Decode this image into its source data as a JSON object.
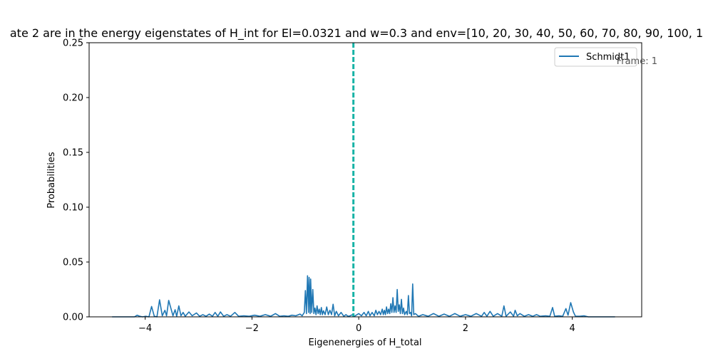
{
  "chart_data": {
    "type": "line",
    "title": "ate 2  are in the energy eigenstates of H_int for El=0.0321 and w=0.3 and env=[10, 20, 30, 40, 50, 60, 70, 80, 90, 100, 1",
    "xlabel": "Eigenenergies of H_total",
    "ylabel": "Probabilities",
    "xlim": [
      -5.05,
      5.3
    ],
    "ylim": [
      0,
      0.25
    ],
    "xticks": [
      {
        "value": -4,
        "label": "−4"
      },
      {
        "value": -2,
        "label": "−2"
      },
      {
        "value": 0,
        "label": "0"
      },
      {
        "value": 2,
        "label": "2"
      },
      {
        "value": 4,
        "label": "4"
      }
    ],
    "yticks": [
      {
        "value": 0.0,
        "label": "0.00"
      },
      {
        "value": 0.05,
        "label": "0.05"
      },
      {
        "value": 0.1,
        "label": "0.10"
      },
      {
        "value": 0.15,
        "label": "0.15"
      },
      {
        "value": 0.2,
        "label": "0.20"
      },
      {
        "value": 0.25,
        "label": "0.25"
      }
    ],
    "grid": false,
    "legend_position": "top-right",
    "annotation": "Frame: 1",
    "colors": {
      "series": "#1f77b4",
      "vline": "#17b3a6",
      "axes": "#000000",
      "annotation": "#555555"
    },
    "vline": {
      "x": -0.1,
      "style": "dashed"
    },
    "series": [
      {
        "name": "Schmidt1",
        "points": [
          [
            -4.62,
            0.0
          ],
          [
            -4.2,
            0.0
          ],
          [
            -4.15,
            0.0015
          ],
          [
            -4.1,
            0.0005
          ],
          [
            -4.05,
            0.0
          ],
          [
            -3.99,
            0.0005
          ],
          [
            -3.93,
            0.0
          ],
          [
            -3.88,
            0.0095
          ],
          [
            -3.83,
            0.0005
          ],
          [
            -3.78,
            0.0
          ],
          [
            -3.73,
            0.0155
          ],
          [
            -3.68,
            0.001
          ],
          [
            -3.63,
            0.006
          ],
          [
            -3.6,
            0.001
          ],
          [
            -3.56,
            0.015
          ],
          [
            -3.52,
            0.008
          ],
          [
            -3.48,
            0.001
          ],
          [
            -3.44,
            0.0065
          ],
          [
            -3.41,
            0.0005
          ],
          [
            -3.37,
            0.01
          ],
          [
            -3.33,
            0.001
          ],
          [
            -3.29,
            0.004
          ],
          [
            -3.25,
            0.0005
          ],
          [
            -3.18,
            0.0045
          ],
          [
            -3.12,
            0.001
          ],
          [
            -3.04,
            0.0035
          ],
          [
            -2.98,
            0.0005
          ],
          [
            -2.92,
            0.002
          ],
          [
            -2.86,
            0.0005
          ],
          [
            -2.8,
            0.0025
          ],
          [
            -2.74,
            0.0005
          ],
          [
            -2.69,
            0.004
          ],
          [
            -2.64,
            0.0005
          ],
          [
            -2.59,
            0.0045
          ],
          [
            -2.53,
            0.0005
          ],
          [
            -2.47,
            0.002
          ],
          [
            -2.4,
            0.0005
          ],
          [
            -2.32,
            0.004
          ],
          [
            -2.25,
            0.0005
          ],
          [
            -2.15,
            0.001
          ],
          [
            -2.05,
            0.0005
          ],
          [
            -1.95,
            0.0015
          ],
          [
            -1.85,
            0.0005
          ],
          [
            -1.75,
            0.002
          ],
          [
            -1.65,
            0.0005
          ],
          [
            -1.56,
            0.003
          ],
          [
            -1.48,
            0.0005
          ],
          [
            -1.4,
            0.001
          ],
          [
            -1.32,
            0.0005
          ],
          [
            -1.25,
            0.0015
          ],
          [
            -1.18,
            0.001
          ],
          [
            -1.1,
            0.0025
          ],
          [
            -1.06,
            0.001
          ],
          [
            -1.02,
            0.004
          ],
          [
            -1.0,
            0.024
          ],
          [
            -0.98,
            0.003
          ],
          [
            -0.96,
            0.0375
          ],
          [
            -0.94,
            0.004
          ],
          [
            -0.93,
            0.036
          ],
          [
            -0.91,
            0.003
          ],
          [
            -0.9,
            0.0345
          ],
          [
            -0.88,
            0.004
          ],
          [
            -0.86,
            0.025
          ],
          [
            -0.84,
            0.003
          ],
          [
            -0.82,
            0.008
          ],
          [
            -0.8,
            0.002
          ],
          [
            -0.78,
            0.01
          ],
          [
            -0.76,
            0.003
          ],
          [
            -0.74,
            0.007
          ],
          [
            -0.72,
            0.002
          ],
          [
            -0.7,
            0.0085
          ],
          [
            -0.68,
            0.002
          ],
          [
            -0.66,
            0.0055
          ],
          [
            -0.63,
            0.002
          ],
          [
            -0.6,
            0.009
          ],
          [
            -0.57,
            0.002
          ],
          [
            -0.54,
            0.006
          ],
          [
            -0.51,
            0.002
          ],
          [
            -0.48,
            0.0115
          ],
          [
            -0.45,
            0.001
          ],
          [
            -0.42,
            0.005
          ],
          [
            -0.38,
            0.001
          ],
          [
            -0.33,
            0.004
          ],
          [
            -0.28,
            0.0005
          ],
          [
            -0.24,
            0.002
          ],
          [
            -0.2,
            0.0005
          ],
          [
            -0.16,
            0.001
          ],
          [
            -0.12,
            0.002
          ],
          [
            -0.08,
            0.0005
          ],
          [
            0.0,
            0.003
          ],
          [
            0.05,
            0.001
          ],
          [
            0.1,
            0.004
          ],
          [
            0.14,
            0.001
          ],
          [
            0.18,
            0.005
          ],
          [
            0.21,
            0.001
          ],
          [
            0.25,
            0.004
          ],
          [
            0.29,
            0.001
          ],
          [
            0.32,
            0.006
          ],
          [
            0.35,
            0.002
          ],
          [
            0.38,
            0.005
          ],
          [
            0.41,
            0.002
          ],
          [
            0.44,
            0.007
          ],
          [
            0.46,
            0.002
          ],
          [
            0.48,
            0.006
          ],
          [
            0.5,
            0.002
          ],
          [
            0.52,
            0.009
          ],
          [
            0.54,
            0.003
          ],
          [
            0.56,
            0.007
          ],
          [
            0.58,
            0.003
          ],
          [
            0.6,
            0.012
          ],
          [
            0.62,
            0.004
          ],
          [
            0.64,
            0.0175
          ],
          [
            0.66,
            0.004
          ],
          [
            0.68,
            0.01
          ],
          [
            0.7,
            0.004
          ],
          [
            0.72,
            0.025
          ],
          [
            0.74,
            0.005
          ],
          [
            0.76,
            0.011
          ],
          [
            0.78,
            0.003
          ],
          [
            0.8,
            0.016
          ],
          [
            0.82,
            0.003
          ],
          [
            0.84,
            0.008
          ],
          [
            0.86,
            0.002
          ],
          [
            0.89,
            0.005
          ],
          [
            0.91,
            0.002
          ],
          [
            0.93,
            0.0195
          ],
          [
            0.95,
            0.003
          ],
          [
            0.97,
            0.004
          ],
          [
            0.99,
            0.001
          ],
          [
            1.01,
            0.03
          ],
          [
            1.03,
            0.002
          ],
          [
            1.06,
            0.003
          ],
          [
            1.12,
            0.0005
          ],
          [
            1.2,
            0.002
          ],
          [
            1.3,
            0.0005
          ],
          [
            1.4,
            0.003
          ],
          [
            1.5,
            0.0005
          ],
          [
            1.6,
            0.0025
          ],
          [
            1.7,
            0.0005
          ],
          [
            1.8,
            0.003
          ],
          [
            1.9,
            0.0005
          ],
          [
            2.0,
            0.002
          ],
          [
            2.1,
            0.0005
          ],
          [
            2.2,
            0.003
          ],
          [
            2.3,
            0.0005
          ],
          [
            2.35,
            0.004
          ],
          [
            2.4,
            0.0005
          ],
          [
            2.46,
            0.005
          ],
          [
            2.52,
            0.0005
          ],
          [
            2.6,
            0.003
          ],
          [
            2.68,
            0.0005
          ],
          [
            2.72,
            0.01
          ],
          [
            2.76,
            0.0005
          ],
          [
            2.84,
            0.0045
          ],
          [
            2.9,
            0.0005
          ],
          [
            2.93,
            0.006
          ],
          [
            2.97,
            0.001
          ],
          [
            3.02,
            0.003
          ],
          [
            3.1,
            0.0005
          ],
          [
            3.18,
            0.002
          ],
          [
            3.26,
            0.0005
          ],
          [
            3.33,
            0.002
          ],
          [
            3.4,
            0.0005
          ],
          [
            3.5,
            0.001
          ],
          [
            3.58,
            0.0005
          ],
          [
            3.63,
            0.0085
          ],
          [
            3.67,
            0.0005
          ],
          [
            3.75,
            0.001
          ],
          [
            3.82,
            0.0005
          ],
          [
            3.88,
            0.0075
          ],
          [
            3.92,
            0.0015
          ],
          [
            3.97,
            0.013
          ],
          [
            4.02,
            0.0045
          ],
          [
            4.06,
            0.0005
          ],
          [
            4.14,
            0.0005
          ],
          [
            4.22,
            0.001
          ],
          [
            4.3,
            0.0
          ],
          [
            4.8,
            0.0
          ]
        ]
      }
    ]
  }
}
